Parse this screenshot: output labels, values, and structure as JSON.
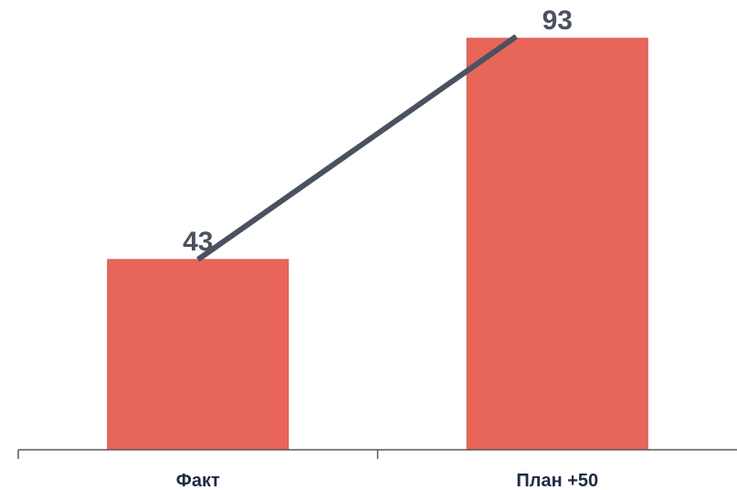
{
  "chart_data": {
    "type": "bar",
    "categories": [
      "Факт",
      "План +50"
    ],
    "values": [
      43,
      93
    ],
    "data_labels": [
      "43",
      "93"
    ],
    "title": "",
    "xlabel": "",
    "ylabel": "",
    "ylim": [
      0,
      100
    ],
    "grid": false,
    "legend": "none",
    "connector_line": true,
    "colors": {
      "bar": "#e8655a",
      "connector": "#4a5260",
      "data_label": "#4a5260",
      "category_label": "#1f2a44"
    }
  }
}
